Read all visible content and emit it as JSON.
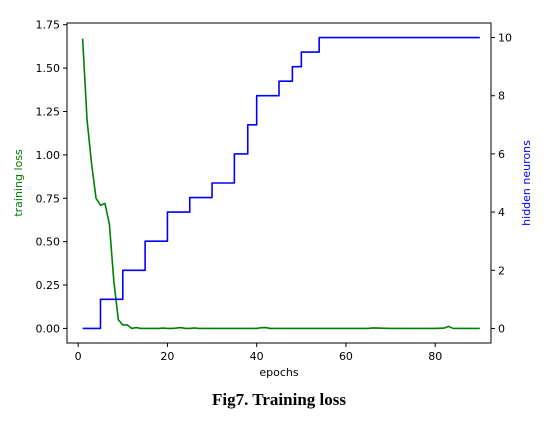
{
  "caption": "Fig7. Training loss",
  "chart_data": {
    "type": "line",
    "xlabel": "epochs",
    "ylabel_left": "training loss",
    "ylabel_right": "hidden neurons",
    "xlim": [
      -2.5,
      92.5
    ],
    "ylim_left": [
      -0.084,
      1.76
    ],
    "ylim_right": [
      -0.5,
      10.5
    ],
    "xticks": [
      0,
      20,
      40,
      60,
      80
    ],
    "yticks_left": [
      0.0,
      0.25,
      0.5,
      0.75,
      1.0,
      1.25,
      1.5,
      1.75
    ],
    "yticks_left_labels": [
      "0.00",
      "0.25",
      "0.50",
      "0.75",
      "1.00",
      "1.25",
      "1.50",
      "1.75"
    ],
    "yticks_right": [
      0,
      2,
      4,
      6,
      8,
      10
    ],
    "grid": false,
    "legend": "none",
    "colors": {
      "left_axis": "#008000",
      "right_axis": "#0000ff"
    },
    "series": [
      {
        "axis": "left",
        "color": "#008000",
        "x": [
          1,
          2,
          3,
          4,
          5,
          6,
          7,
          8,
          9,
          10,
          11,
          12,
          13,
          14,
          15,
          16,
          17,
          18,
          19,
          20,
          21,
          22,
          23,
          24,
          25,
          26,
          27,
          28,
          29,
          30,
          35,
          40,
          41,
          42,
          43,
          45,
          50,
          55,
          60,
          65,
          66,
          70,
          75,
          80,
          82,
          83,
          84,
          85,
          90
        ],
        "y": [
          1.67,
          1.2,
          0.95,
          0.75,
          0.71,
          0.72,
          0.6,
          0.27,
          0.05,
          0.02,
          0.02,
          0.0,
          0.005,
          0.0,
          0.0,
          0.0,
          0.0,
          0.0,
          0.002,
          0.0,
          0.0,
          0.002,
          0.005,
          0.0,
          0.0,
          0.003,
          0.0,
          0.0,
          0.0,
          0.0,
          0.0,
          0.0,
          0.004,
          0.005,
          0.0,
          0.0,
          0.0,
          0.0,
          0.0,
          0.0,
          0.003,
          0.0,
          0.0,
          0.0,
          0.002,
          0.012,
          0.0,
          0.0,
          0.0
        ]
      },
      {
        "axis": "right",
        "color": "#0000ff",
        "step": "post",
        "x": [
          1,
          5,
          10,
          15,
          20,
          25,
          30,
          35,
          38,
          40,
          45,
          48,
          50,
          54,
          90
        ],
        "y": [
          0,
          1,
          2,
          3,
          4,
          4.5,
          5,
          6,
          7,
          8,
          8.5,
          9,
          9.5,
          10,
          10
        ]
      }
    ]
  }
}
